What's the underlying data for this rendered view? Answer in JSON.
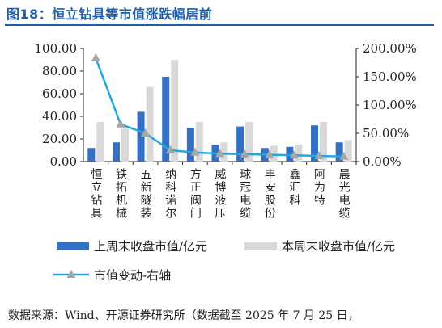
{
  "title": "图18：恒立钻具等市值涨跌幅居前",
  "source": "数据来源：Wind、开源证券研究所（数据截至 2025 年 7 月 25 日，",
  "colors": {
    "title": "#1f5ea8",
    "bar_last": "#3370c4",
    "bar_this": "#d9d9d9",
    "line": "#22a7e0",
    "marker": "#a6a6a6"
  },
  "chart_data": {
    "type": "bar",
    "categories": [
      "恒立钻具",
      "铁拓机械",
      "五新隧装",
      "纳科诺尔",
      "方正阀门",
      "威博液压",
      "球冠电缆",
      "丰安股份",
      "鑫汇科",
      "阿为特",
      "晨光电缆"
    ],
    "series": [
      {
        "name": "上周末收盘市值/亿元",
        "type": "bar",
        "axis": "left",
        "values": [
          12,
          17,
          44,
          75,
          30,
          15,
          31,
          12,
          13,
          32,
          17
        ]
      },
      {
        "name": "本周末收盘市值/亿元",
        "type": "bar",
        "axis": "left",
        "values": [
          35,
          29,
          66,
          90,
          35,
          17,
          35,
          14,
          15,
          35,
          19
        ]
      },
      {
        "name": "市值变动-右轴",
        "type": "line",
        "axis": "right",
        "values": [
          183,
          66,
          50,
          20,
          16,
          14,
          13,
          12,
          11,
          10,
          9
        ]
      }
    ],
    "ylim_left": [
      0,
      100
    ],
    "yticks_left": [
      "0.00",
      "20.00",
      "40.00",
      "60.00",
      "80.00",
      "100.00"
    ],
    "ylim_right": [
      0,
      200
    ],
    "yticks_right": [
      "0.00%",
      "50.00%",
      "100.00%",
      "150.00%",
      "200.00%"
    ],
    "grid": false,
    "legend_position": "bottom"
  }
}
